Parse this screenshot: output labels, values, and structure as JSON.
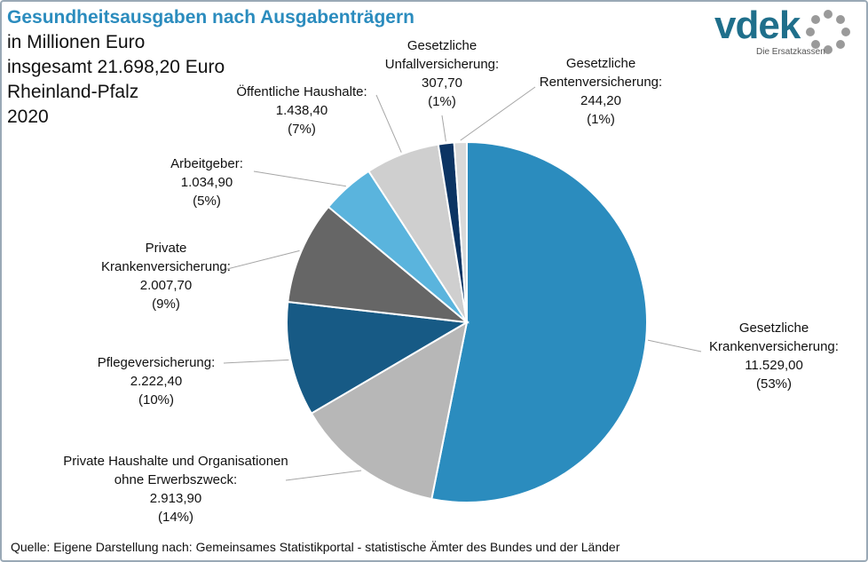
{
  "title": {
    "line1": "Gesundheitsausgaben nach Ausgabenträgern",
    "line2": "in Millionen Euro",
    "line3": "insgesamt 21.698,20 Euro",
    "line4": "Rheinland-Pfalz",
    "line5": "2020"
  },
  "logo": {
    "word": "vdek",
    "tagline": "Die Ersatzkassen"
  },
  "source": "Quelle: Eigene Darstellung nach: Gemeinsames Statistikportal - statistische Ämter des Bundes und der Länder",
  "chart_data": {
    "type": "pie",
    "slices": [
      {
        "label": [
          "Gesetzliche",
          "Krankenversicherung:"
        ],
        "value": 11529.0,
        "value_text": "11.529,00",
        "percent_text": "(53%)",
        "color": "#2b8cbe"
      },
      {
        "label": [
          "Private Haushalte und Organisationen",
          "ohne Erwerbszweck:"
        ],
        "value": 2913.9,
        "value_text": "2.913,90",
        "percent_text": "(14%)",
        "color": "#b7b7b7"
      },
      {
        "label": [
          "Pflegeversicherung:"
        ],
        "value": 2222.4,
        "value_text": "2.222,40",
        "percent_text": "(10%)",
        "color": "#175a85"
      },
      {
        "label": [
          "Private",
          "Krankenversicherung:"
        ],
        "value": 2007.7,
        "value_text": "2.007,70",
        "percent_text": "(9%)",
        "color": "#666666"
      },
      {
        "label": [
          "Arbeitgeber:"
        ],
        "value": 1034.9,
        "value_text": "1.034,90",
        "percent_text": "(5%)",
        "color": "#5ab4dd"
      },
      {
        "label": [
          "Öffentliche Haushalte:"
        ],
        "value": 1438.4,
        "value_text": "1.438,40",
        "percent_text": "(7%)",
        "color": "#cfcfcf"
      },
      {
        "label": [
          "Gesetzliche",
          "Unfallversicherung:"
        ],
        "value": 307.7,
        "value_text": "307,70",
        "percent_text": "(1%)",
        "color": "#0c3463"
      },
      {
        "label": [
          "Gesetzliche",
          "Rentenversicherung:"
        ],
        "value": 244.2,
        "value_text": "244,20",
        "percent_text": "(1%)",
        "color": "#d9d9d9"
      }
    ]
  }
}
